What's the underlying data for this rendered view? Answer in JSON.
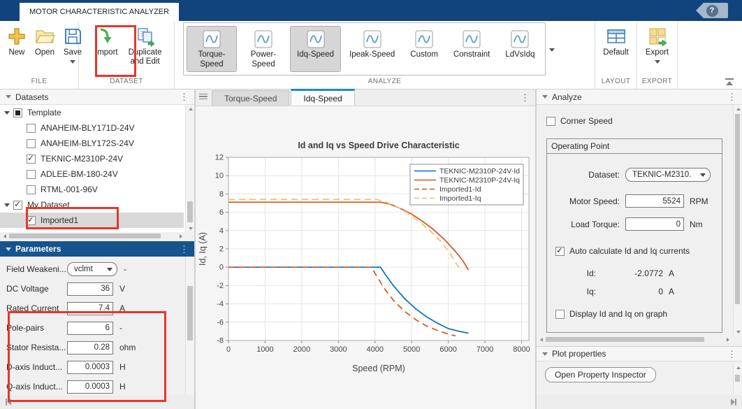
{
  "window": {
    "tab_title": "MOTOR CHARACTERISTIC ANALYZER",
    "help_label": "?"
  },
  "toolstrip": {
    "file": {
      "label": "FILE",
      "buttons": [
        {
          "label": "New",
          "icon": "new-plus-icon"
        },
        {
          "label": "Open",
          "icon": "open-folder-icon"
        },
        {
          "label": "Save",
          "icon": "save-floppy-icon",
          "has_dropdown": true
        }
      ]
    },
    "dataset": {
      "label": "DATASET",
      "buttons": [
        {
          "label": "Import",
          "icon": "import-arrow-icon",
          "annotated": true
        },
        {
          "label": "Duplicate and Edit",
          "icon": "duplicate-edit-icon"
        }
      ]
    },
    "analyze": {
      "label": "ANALYZE",
      "buttons": [
        {
          "label": "Torque-Speed",
          "icon": "wave-icon",
          "selected": true
        },
        {
          "label": "Power-Speed",
          "icon": "wave-icon",
          "selected": false
        },
        {
          "label": "Idq-Speed",
          "icon": "wave-icon",
          "selected": true
        },
        {
          "label": "Ipeak-Speed",
          "icon": "wave-icon",
          "selected": false
        },
        {
          "label": "Custom",
          "icon": "wave-icon",
          "selected": false
        },
        {
          "label": "Constraint",
          "icon": "wave-icon",
          "selected": false
        },
        {
          "label": "LdVsIdq",
          "icon": "wave-icon",
          "selected": false
        }
      ]
    },
    "layout": {
      "label": "LAYOUT",
      "buttons": [
        {
          "label": "Default",
          "icon": "layout-table-icon"
        }
      ]
    },
    "export": {
      "label": "EXPORT",
      "buttons": [
        {
          "label": "Export",
          "icon": "export-grid-icon",
          "has_dropdown": true
        }
      ]
    }
  },
  "datasets_panel": {
    "title": "Datasets",
    "tree": [
      {
        "label": "Template",
        "level": 0,
        "check": "partial",
        "expander": true,
        "selected": false
      },
      {
        "label": "ANAHEIM-BLY171D-24V",
        "level": 1,
        "check": "off",
        "selected": false
      },
      {
        "label": "ANAHEIM-BLY172S-24V",
        "level": 1,
        "check": "off",
        "selected": false
      },
      {
        "label": "TEKNIC-M2310P-24V",
        "level": 1,
        "check": "on",
        "selected": false
      },
      {
        "label": "ADLEE-BM-180-24V",
        "level": 1,
        "check": "off",
        "selected": false
      },
      {
        "label": "RTML-001-96V",
        "level": 1,
        "check": "off",
        "selected": false
      },
      {
        "label": "My Dataset",
        "level": 0,
        "check": "on",
        "expander": true,
        "selected": false
      },
      {
        "label": "Imported1",
        "level": 1,
        "check": "on",
        "selected": true
      }
    ]
  },
  "parameters_panel": {
    "title": "Parameters",
    "rows": [
      {
        "label": "Field Weakeni...",
        "control": "dropdown",
        "value": "vclmt",
        "unit": "-"
      },
      {
        "label": "DC Voltage",
        "control": "input",
        "value": "36",
        "unit": "V"
      },
      {
        "label": "Rated Current",
        "control": "input",
        "value": "7.4",
        "unit": "A"
      },
      {
        "label": "Pole-pairs",
        "control": "input",
        "value": "6",
        "unit": "-"
      },
      {
        "label": "Stator Resista...",
        "control": "input",
        "value": "0.28",
        "unit": "ohm"
      },
      {
        "label": "D-axis Induct...",
        "control": "input",
        "value": "0.0003",
        "unit": "H"
      },
      {
        "label": "Q-axis Induct...",
        "control": "input",
        "value": "0.0003",
        "unit": "H"
      }
    ]
  },
  "doc_tabs": [
    {
      "label": "Torque-Speed",
      "active": false
    },
    {
      "label": "Idq-Speed",
      "active": true
    }
  ],
  "chart_data": {
    "type": "line",
    "title": "Id and Iq vs Speed Drive Characteristic",
    "xlabel": "Speed (RPM)",
    "ylabel": "Id, Iq (A)",
    "xlim": [
      0,
      8200
    ],
    "ylim": [
      -8,
      12
    ],
    "xticks": [
      0,
      1000,
      2000,
      3000,
      4000,
      5000,
      6000,
      7000,
      8000
    ],
    "yticks": [
      -8,
      -6,
      -4,
      -2,
      0,
      2,
      4,
      6,
      8,
      10,
      12
    ],
    "grid": true,
    "legend_position": "upper right",
    "series": [
      {
        "name": "TEKNIC-M2310P-24V-Id",
        "color": "#0072BD",
        "style": "solid",
        "points": [
          [
            0,
            0
          ],
          [
            4150,
            0
          ],
          [
            4300,
            -0.9
          ],
          [
            4500,
            -2.0
          ],
          [
            4800,
            -3.4
          ],
          [
            5100,
            -4.5
          ],
          [
            5400,
            -5.4
          ],
          [
            5700,
            -6.1
          ],
          [
            6000,
            -6.7
          ],
          [
            6300,
            -7.0
          ],
          [
            6550,
            -7.2
          ]
        ]
      },
      {
        "name": "TEKNIC-M2310P-24V-Iq",
        "color": "#D95319",
        "style": "solid",
        "points": [
          [
            0,
            7.1
          ],
          [
            4150,
            7.1
          ],
          [
            4400,
            6.9
          ],
          [
            4700,
            6.4
          ],
          [
            5000,
            5.8
          ],
          [
            5300,
            5.0
          ],
          [
            5600,
            4.1
          ],
          [
            5900,
            3.0
          ],
          [
            6200,
            1.7
          ],
          [
            6400,
            0.7
          ],
          [
            6550,
            -0.3
          ]
        ]
      },
      {
        "name": "Imported1-Id",
        "color": "#D95319",
        "style": "dashed",
        "points": [
          [
            0,
            0
          ],
          [
            3900,
            0
          ],
          [
            4050,
            -1.0
          ],
          [
            4250,
            -2.3
          ],
          [
            4500,
            -3.6
          ],
          [
            4800,
            -4.8
          ],
          [
            5100,
            -5.7
          ],
          [
            5400,
            -6.4
          ],
          [
            5700,
            -6.9
          ],
          [
            6000,
            -7.3
          ],
          [
            6200,
            -7.5
          ]
        ]
      },
      {
        "name": "Imported1-Iq",
        "color": "#EFC168",
        "style": "dashed",
        "points": [
          [
            0,
            7.4
          ],
          [
            4050,
            7.4
          ],
          [
            4300,
            7.1
          ],
          [
            4600,
            6.6
          ],
          [
            4900,
            5.9
          ],
          [
            5200,
            5.0
          ],
          [
            5500,
            4.0
          ],
          [
            5800,
            2.8
          ],
          [
            6050,
            1.5
          ],
          [
            6250,
            0.2
          ],
          [
            6350,
            -0.5
          ]
        ]
      }
    ]
  },
  "analyze_panel": {
    "title": "Analyze",
    "corner_speed": {
      "label": "Corner Speed",
      "checked": false
    },
    "operating_point": {
      "title": "Operating Point",
      "dataset_label": "Dataset:",
      "dataset_value": "TEKNIC-M2310...",
      "motor_speed_label": "Motor Speed:",
      "motor_speed_value": "5524",
      "motor_speed_unit": "RPM",
      "load_torque_label": "Load Torque:",
      "load_torque_value": "0",
      "load_torque_unit": "Nm",
      "auto_calc": {
        "label": "Auto calculate Id and Iq currents",
        "checked": true
      },
      "id_label": "Id:",
      "id_value": "-2.0772",
      "id_unit": "A",
      "iq_label": "Iq:",
      "iq_value": "0",
      "iq_unit": "A",
      "display_graph": {
        "label": "Display Id and Iq on graph",
        "checked": false
      }
    }
  },
  "plot_properties_panel": {
    "title": "Plot properties",
    "button_label": "Open Property Inspector"
  },
  "colors": {
    "titlebar_navy": "#11447d",
    "parameters_header_blue": "#17548e",
    "active_tab_accent": "#1e8bc3",
    "annotation_red": "#e8352b",
    "selected_row_gray": "#d9d9d9"
  }
}
